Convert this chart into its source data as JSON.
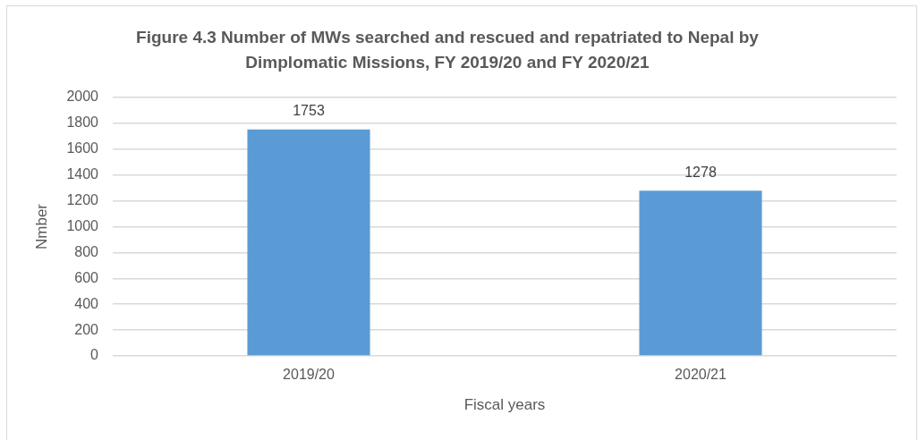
{
  "chart_data": {
    "type": "bar",
    "title": "Figure 4.3 Number of MWs searched and rescued and repatriated to Nepal by Dimplomatic Missions, FY 2019/20 and FY 2020/21",
    "xlabel": "Fiscal years",
    "ylabel": "Nmber",
    "categories": [
      "2019/20",
      "2020/21"
    ],
    "values": [
      1753,
      1278
    ],
    "color": "#5b9bd5",
    "ylim": [
      0,
      2000
    ],
    "yticks": [
      0,
      200,
      400,
      600,
      800,
      1000,
      1200,
      1400,
      1600,
      1800,
      2000
    ],
    "grid": "y",
    "data_labels": true
  }
}
